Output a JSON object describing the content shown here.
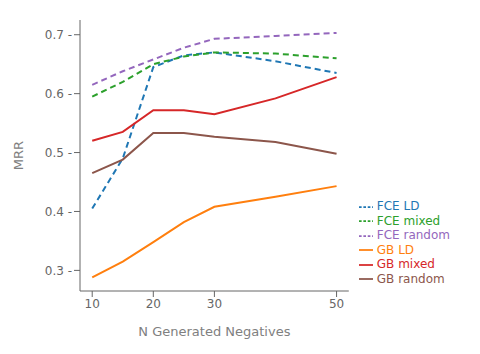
{
  "chart_data": {
    "type": "line",
    "xlabel": "N Generated Negatives",
    "ylabel": "MRR",
    "x": [
      10,
      15,
      20,
      25,
      30,
      40,
      50
    ],
    "series": [
      {
        "name": "FCE LD",
        "color": "#1f77b4",
        "line_style": "dashed",
        "values": [
          0.405,
          0.49,
          0.645,
          0.665,
          0.67,
          0.655,
          0.635
        ]
      },
      {
        "name": "FCE mixed",
        "color": "#2ca02c",
        "line_style": "dashed",
        "values": [
          0.595,
          0.62,
          0.65,
          0.663,
          0.67,
          0.668,
          0.66
        ]
      },
      {
        "name": "FCE random",
        "color": "#9467bd",
        "line_style": "dashed",
        "values": [
          0.615,
          0.638,
          0.658,
          0.678,
          0.693,
          0.698,
          0.703
        ]
      },
      {
        "name": "GB LD",
        "color": "#ff7f0e",
        "line_style": "solid",
        "values": [
          0.288,
          0.315,
          0.348,
          0.382,
          0.408,
          0.425,
          0.443
        ]
      },
      {
        "name": "GB mixed",
        "color": "#d62728",
        "line_style": "solid",
        "values": [
          0.52,
          0.535,
          0.572,
          0.572,
          0.565,
          0.592,
          0.628
        ]
      },
      {
        "name": "GB random",
        "color": "#8c564b",
        "line_style": "solid",
        "values": [
          0.465,
          0.488,
          0.533,
          0.533,
          0.527,
          0.518,
          0.498
        ]
      }
    ],
    "xlim": [
      8,
      52
    ],
    "xticks": [
      10,
      20,
      30,
      50
    ],
    "ylim": [
      0.265,
      0.725
    ],
    "yticks": [
      {
        "value": 0.3,
        "label": "0.3 -"
      },
      {
        "value": 0.4,
        "label": "0.4 -"
      },
      {
        "value": 0.5,
        "label": "0.5 -"
      },
      {
        "value": 0.6,
        "label": "0.6 -"
      },
      {
        "value": 0.7,
        "label": "0.7 -"
      }
    ],
    "legend": "lower right",
    "grid": false
  }
}
